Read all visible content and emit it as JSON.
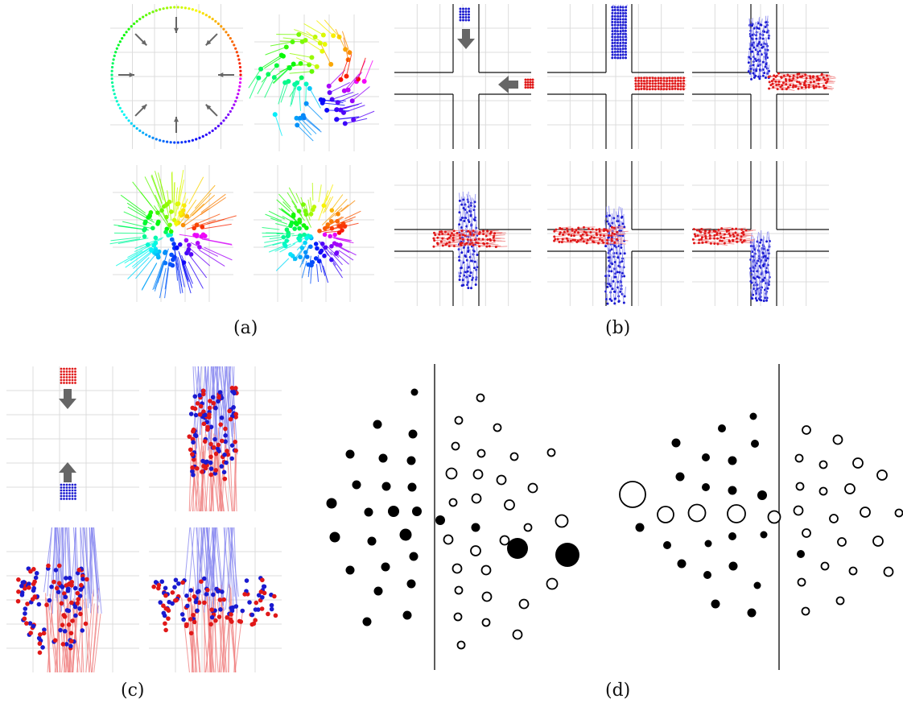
{
  "captions": {
    "a": "(a)",
    "b": "(b)",
    "c": "(c)",
    "d": "(d)"
  },
  "colors": {
    "agent_red": "#e01818",
    "agent_blue": "#1a1ad0",
    "trail_red": "#f08080",
    "trail_blue": "#8888f0",
    "arrow_gray": "#666666",
    "grid": "#dcdcdc",
    "ink": "#111111"
  },
  "panels": {
    "a": [
      "circle-initial",
      "circle-swirl",
      "circle-spread",
      "circle-final"
    ],
    "b": [
      "crossing-initial",
      "crossing-approach",
      "crossing-meet",
      "crossing-cross-1",
      "crossing-cross-2",
      "crossing-pass"
    ],
    "c": [
      "corridor-initial",
      "corridor-approach",
      "corridor-mix",
      "corridor-spread"
    ],
    "d": [
      "lane-formation-left",
      "lane-formation-right"
    ]
  }
}
